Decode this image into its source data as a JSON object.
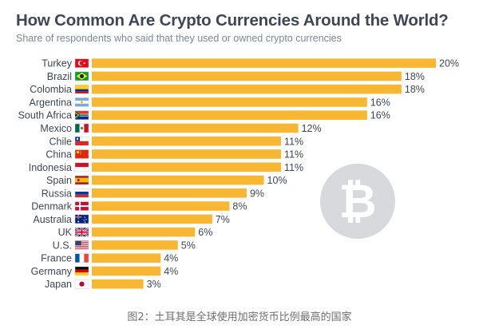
{
  "title": "How Common Are Crypto Currencies Around the World?",
  "subtitle": "Share of respondents who said that they used or owned crypto currencies",
  "caption": "图2：土耳其是全球使用加密货币比例最高的国家",
  "colors": {
    "bar": "#f7b733",
    "text": "#3e4753",
    "subtext": "#7f8790",
    "coin": "#d7d9dc"
  },
  "icons": {
    "watermark": "bitcoin-icon"
  },
  "chart_data": {
    "type": "bar",
    "orientation": "horizontal",
    "title": "How Common Are Crypto Currencies Around the World?",
    "subtitle": "Share of respondents who said that they used or owned crypto currencies",
    "xlabel": "",
    "ylabel": "",
    "xlim": [
      0,
      20
    ],
    "grid": false,
    "legend": "none",
    "unit": "%",
    "categories": [
      "Turkey",
      "Brazil",
      "Colombia",
      "Argentina",
      "South Africa",
      "Mexico",
      "Chile",
      "China",
      "Indonesia",
      "Spain",
      "Russia",
      "Denmark",
      "Australia",
      "UK",
      "U.S.",
      "France",
      "Germany",
      "Japan"
    ],
    "labels": [
      "20%",
      "18%",
      "18%",
      "16%",
      "16%",
      "12%",
      "11%",
      "11%",
      "11%",
      "10%",
      "9%",
      "8%",
      "7%",
      "6%",
      "5%",
      "4%",
      "4%",
      "3%"
    ],
    "values": [
      20,
      18,
      18,
      16,
      16,
      12,
      11,
      11,
      11,
      10,
      9,
      8,
      7,
      6,
      5,
      4,
      4,
      3
    ],
    "flags": [
      "turkey",
      "brazil",
      "colombia",
      "argentina",
      "south-africa",
      "mexico",
      "chile",
      "china",
      "indonesia",
      "spain",
      "russia",
      "denmark",
      "australia",
      "uk",
      "us",
      "france",
      "germany",
      "japan"
    ]
  }
}
